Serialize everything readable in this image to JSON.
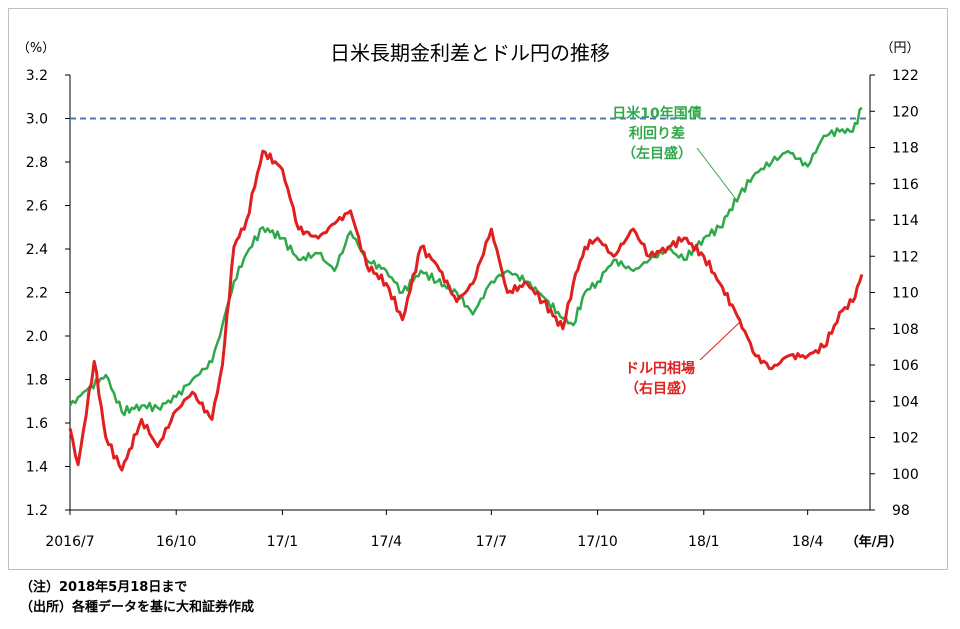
{
  "chart_data": {
    "type": "line",
    "title": "日米長期金利差とドル円の推移",
    "left_unit": "（%）",
    "right_unit": "（円）",
    "x_unit": "（年/月）",
    "x_tick_labels": [
      "2016/7",
      "16/10",
      "17/1",
      "17/4",
      "17/7",
      "17/10",
      "18/1",
      "18/4"
    ],
    "left_axis": {
      "min": 1.2,
      "max": 3.2,
      "step": 0.2,
      "ticks": [
        "1.2",
        "1.4",
        "1.6",
        "1.8",
        "2.0",
        "2.2",
        "2.4",
        "2.6",
        "2.8",
        "3.0",
        "3.2"
      ]
    },
    "right_axis": {
      "min": 98,
      "max": 122,
      "step": 2,
      "ticks": [
        "98",
        "100",
        "102",
        "104",
        "106",
        "108",
        "110",
        "112",
        "114",
        "116",
        "118",
        "120",
        "122"
      ]
    },
    "reference_line": {
      "value": 3.0,
      "axis": "left",
      "color": "#4a7ab5",
      "style": "dashed"
    },
    "series": [
      {
        "name": "日米10年国債利回り差（左目盛）",
        "label_lines": [
          "日米10年国債",
          "利回り差",
          "（左目盛）"
        ],
        "axis": "left",
        "color": "#2ea84a",
        "x": [
          "2016/7/1",
          "2016/7/15",
          "2016/8/1",
          "2016/8/15",
          "2016/9/1",
          "2016/9/15",
          "2016/10/1",
          "2016/10/15",
          "2016/11/1",
          "2016/11/10",
          "2016/11/20",
          "2016/12/1",
          "2016/12/15",
          "2017/1/1",
          "2017/1/15",
          "2017/2/1",
          "2017/2/15",
          "2017/3/1",
          "2017/3/15",
          "2017/4/1",
          "2017/4/15",
          "2017/5/1",
          "2017/5/15",
          "2017/6/1",
          "2017/6/15",
          "2017/7/1",
          "2017/7/15",
          "2017/8/1",
          "2017/8/15",
          "2017/9/1",
          "2017/9/10",
          "2017/9/20",
          "2017/10/1",
          "2017/10/15",
          "2017/11/1",
          "2017/11/15",
          "2017/12/1",
          "2017/12/15",
          "2018/1/1",
          "2018/1/15",
          "2018/2/1",
          "2018/2/15",
          "2018/3/1",
          "2018/3/15",
          "2018/4/1",
          "2018/4/15",
          "2018/5/1",
          "2018/5/10",
          "2018/5/18"
        ],
        "values": [
          1.68,
          1.75,
          1.82,
          1.65,
          1.68,
          1.67,
          1.72,
          1.8,
          1.88,
          2.05,
          2.25,
          2.38,
          2.5,
          2.45,
          2.35,
          2.38,
          2.3,
          2.48,
          2.35,
          2.3,
          2.2,
          2.3,
          2.25,
          2.2,
          2.1,
          2.25,
          2.3,
          2.25,
          2.18,
          2.08,
          2.05,
          2.2,
          2.25,
          2.35,
          2.3,
          2.35,
          2.4,
          2.35,
          2.45,
          2.5,
          2.65,
          2.75,
          2.8,
          2.85,
          2.78,
          2.92,
          2.95,
          2.94,
          3.05
        ]
      },
      {
        "name": "ドル円相場（右目盛）",
        "label_lines": [
          "ドル円相場",
          "（右目盛）"
        ],
        "axis": "right",
        "color": "#e01f1f",
        "x": [
          "2016/7/1",
          "2016/7/8",
          "2016/7/22",
          "2016/8/1",
          "2016/8/15",
          "2016/9/1",
          "2016/9/15",
          "2016/10/1",
          "2016/10/15",
          "2016/11/1",
          "2016/11/10",
          "2016/11/20",
          "2016/12/1",
          "2016/12/15",
          "2017/1/1",
          "2017/1/15",
          "2017/2/1",
          "2017/2/15",
          "2017/3/1",
          "2017/3/15",
          "2017/4/1",
          "2017/4/15",
          "2017/5/1",
          "2017/5/15",
          "2017/6/1",
          "2017/6/15",
          "2017/7/1",
          "2017/7/15",
          "2017/8/1",
          "2017/8/15",
          "2017/9/1",
          "2017/9/10",
          "2017/9/20",
          "2017/10/1",
          "2017/10/15",
          "2017/11/1",
          "2017/11/15",
          "2017/12/1",
          "2017/12/15",
          "2018/1/1",
          "2018/1/15",
          "2018/2/1",
          "2018/2/15",
          "2018/3/1",
          "2018/3/15",
          "2018/4/1",
          "2018/4/15",
          "2018/5/1",
          "2018/5/10",
          "2018/5/18"
        ],
        "values": [
          102.5,
          100.5,
          106.2,
          102.0,
          100.2,
          103.0,
          101.5,
          103.5,
          104.5,
          103.0,
          106.0,
          112.5,
          114.0,
          117.8,
          116.8,
          113.5,
          113.0,
          113.8,
          114.5,
          111.5,
          110.5,
          108.5,
          112.5,
          111.5,
          109.5,
          110.5,
          113.5,
          110.0,
          110.5,
          109.5,
          108.0,
          110.5,
          112.5,
          113.0,
          112.0,
          113.5,
          112.0,
          112.5,
          113.0,
          112.0,
          110.5,
          108.5,
          106.5,
          105.8,
          106.5,
          106.5,
          107.0,
          109.0,
          109.5,
          111.0
        ]
      }
    ]
  },
  "notes": {
    "line1": "（注）2018年5月18日まで",
    "line2": "（出所）各種データを基に大和証券作成"
  }
}
